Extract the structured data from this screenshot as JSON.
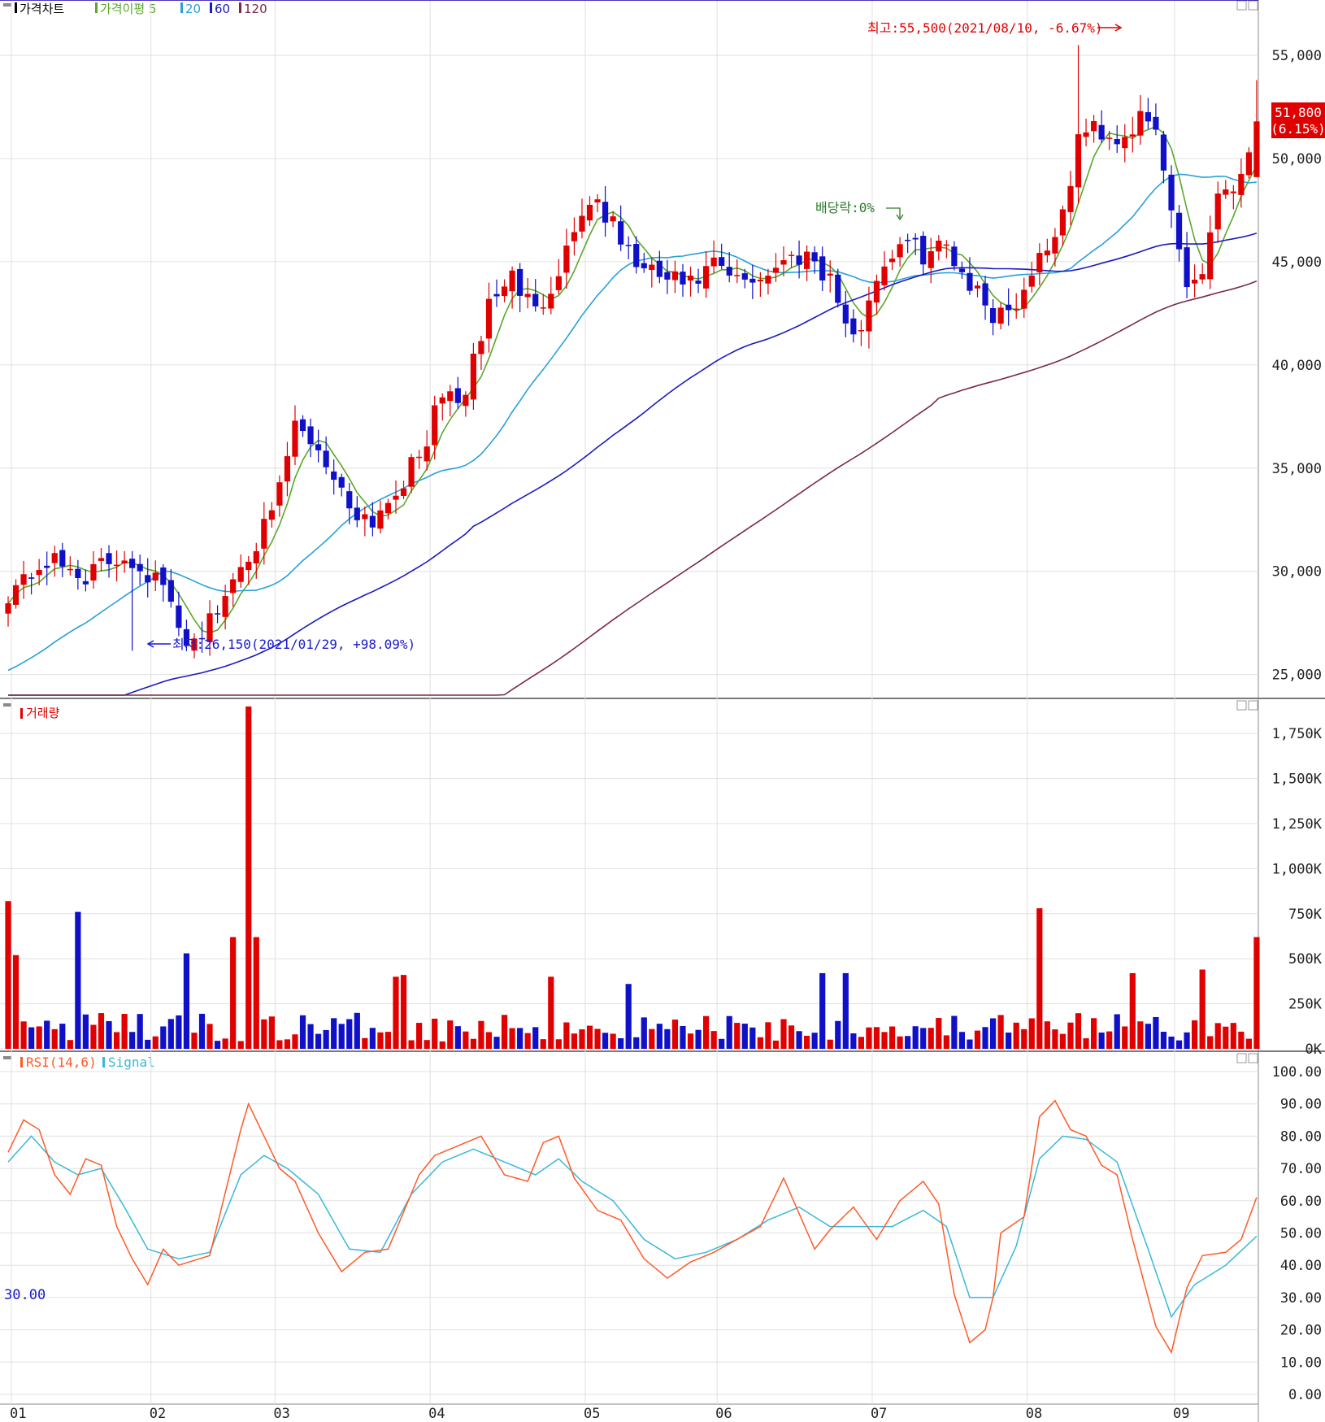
{
  "colors": {
    "up": "#e00000",
    "down": "#1010c8",
    "ma5": "#5aa82a",
    "ma20": "#2aa0d8",
    "ma60": "#1a1ac0",
    "ma120": "#7a2a48",
    "grid": "#e0e0e0",
    "rsi": "#ff5a28",
    "signal": "#3ab8d8",
    "overbought_fill": "#c80000",
    "oversold_fill": "#001a90",
    "line70": "#d02020",
    "line30": "#1a1ad0",
    "last_price_box": "#e00000"
  },
  "panels": {
    "price": {
      "legend": [
        {
          "text": "가격차트",
          "color": "#000000"
        },
        {
          "text": "가격이평 5",
          "color": "#5aa82a"
        },
        {
          "text": "20",
          "color": "#2aa0d8"
        },
        {
          "text": "60",
          "color": "#1a1ac0"
        },
        {
          "text": "120",
          "color": "#7a2a48"
        }
      ],
      "y_ticks": [
        "55,000",
        "50,000",
        "45,000",
        "40,000",
        "35,000",
        "30,000",
        "25,000"
      ],
      "last_price": "51,800",
      "last_change": "(6.15%)",
      "annot_high": "최고:55,500(2021/08/10, -6.67%)",
      "annot_low": "최저:26,150(2021/01/29, +98.09%)",
      "annot_div": "배당락:0%"
    },
    "volume": {
      "legend": "거래량",
      "y_ticks": [
        "1,750K",
        "1,500K",
        "1,250K",
        "1,000K",
        "750K",
        "500K",
        "250K",
        "0K"
      ]
    },
    "rsi": {
      "legend_rsi": "RSI(14,6)",
      "legend_signal": "Signal",
      "y_ticks": [
        "100.00",
        "90.00",
        "80.00",
        "70.00",
        "60.00",
        "50.00",
        "40.00",
        "30.00",
        "20.00",
        "10.00",
        "0.00"
      ],
      "level_label": "30.00",
      "overbought": 70,
      "oversold": 30
    }
  },
  "months": [
    "01",
    "02",
    "03",
    "04",
    "05",
    "06",
    "07",
    "08",
    "09"
  ],
  "chart_data": [
    {
      "type": "candlestick",
      "title": "가격차트",
      "ylim": [
        24000,
        56500
      ],
      "y_ticks": [
        25000,
        30000,
        35000,
        40000,
        45000,
        50000,
        55000
      ],
      "anchors": [
        [
          0,
          29000
        ],
        [
          5,
          30500
        ],
        [
          10,
          29800
        ],
        [
          15,
          30800
        ],
        [
          20,
          29300
        ],
        [
          22,
          27000
        ],
        [
          24,
          26700
        ],
        [
          27,
          28000
        ],
        [
          30,
          30500
        ],
        [
          34,
          32500
        ],
        [
          37,
          37000
        ],
        [
          40,
          36000
        ],
        [
          44,
          33200
        ],
        [
          47,
          32500
        ],
        [
          50,
          34000
        ],
        [
          53,
          35500
        ],
        [
          56,
          38500
        ],
        [
          59,
          38500
        ],
        [
          62,
          43000
        ],
        [
          65,
          44300
        ],
        [
          68,
          42500
        ],
        [
          71,
          44700
        ],
        [
          74,
          47500
        ],
        [
          76,
          48000
        ],
        [
          79,
          46000
        ],
        [
          82,
          44500
        ],
        [
          85,
          44200
        ],
        [
          88,
          43800
        ],
        [
          91,
          44800
        ],
        [
          94,
          44000
        ],
        [
          97,
          44300
        ],
        [
          100,
          45000
        ],
        [
          103,
          45500
        ],
        [
          106,
          44200
        ],
        [
          109,
          41000
        ],
        [
          112,
          44300
        ],
        [
          115,
          46000
        ],
        [
          118,
          45400
        ],
        [
          121,
          45800
        ],
        [
          124,
          44000
        ],
        [
          127,
          42500
        ],
        [
          130,
          43000
        ],
        [
          133,
          45300
        ],
        [
          136,
          47000
        ],
        [
          138,
          51000
        ],
        [
          140,
          51500
        ],
        [
          143,
          51000
        ],
        [
          146,
          51800
        ],
        [
          148,
          51300
        ],
        [
          150,
          47500
        ],
        [
          152,
          44000
        ],
        [
          154,
          44500
        ],
        [
          156,
          48500
        ],
        [
          159,
          49000
        ],
        [
          161,
          51800
        ]
      ],
      "high_label_value": 55500,
      "low_label_value": 26150,
      "ma_periods": [
        5,
        20,
        60,
        120
      ]
    },
    {
      "type": "bar",
      "title": "거래량",
      "ylim": [
        0,
        1850
      ],
      "unit": "K",
      "y_ticks": [
        0,
        250,
        500,
        750,
        1000,
        1250,
        1500,
        1750
      ],
      "spikes": [
        [
          0,
          820
        ],
        [
          1,
          520
        ],
        [
          9,
          760
        ],
        [
          23,
          530
        ],
        [
          29,
          620
        ],
        [
          31,
          1900
        ],
        [
          32,
          620
        ],
        [
          50,
          400
        ],
        [
          51,
          410
        ],
        [
          70,
          400
        ],
        [
          80,
          360
        ],
        [
          105,
          420
        ],
        [
          108,
          420
        ],
        [
          133,
          780
        ],
        [
          145,
          420
        ],
        [
          154,
          440
        ],
        [
          161,
          620
        ]
      ]
    },
    {
      "type": "line",
      "title": "RSI(14,6)",
      "series": [
        {
          "name": "RSI(14,6)"
        },
        {
          "name": "Signal"
        }
      ],
      "ylim": [
        0,
        100
      ],
      "y_ticks": [
        0,
        10,
        20,
        30,
        40,
        50,
        60,
        70,
        80,
        90,
        100
      ],
      "reference_lines": [
        70,
        30
      ],
      "rsi_anchors": [
        [
          0,
          75
        ],
        [
          2,
          85
        ],
        [
          4,
          82
        ],
        [
          6,
          68
        ],
        [
          8,
          62
        ],
        [
          10,
          73
        ],
        [
          12,
          71
        ],
        [
          14,
          52
        ],
        [
          16,
          42
        ],
        [
          18,
          34
        ],
        [
          20,
          45
        ],
        [
          22,
          40
        ],
        [
          26,
          43
        ],
        [
          30,
          82
        ],
        [
          31,
          90
        ],
        [
          33,
          80
        ],
        [
          35,
          70
        ],
        [
          37,
          66
        ],
        [
          40,
          50
        ],
        [
          43,
          38
        ],
        [
          46,
          44
        ],
        [
          49,
          45
        ],
        [
          53,
          68
        ],
        [
          55,
          74
        ],
        [
          58,
          77
        ],
        [
          61,
          80
        ],
        [
          64,
          68
        ],
        [
          67,
          66
        ],
        [
          69,
          78
        ],
        [
          71,
          80
        ],
        [
          73,
          67
        ],
        [
          76,
          57
        ],
        [
          79,
          54
        ],
        [
          82,
          42
        ],
        [
          85,
          36
        ],
        [
          88,
          41
        ],
        [
          91,
          44
        ],
        [
          94,
          48
        ],
        [
          97,
          52
        ],
        [
          100,
          67
        ],
        [
          102,
          56
        ],
        [
          104,
          45
        ],
        [
          106,
          51
        ],
        [
          109,
          58
        ],
        [
          112,
          48
        ],
        [
          115,
          60
        ],
        [
          118,
          66
        ],
        [
          120,
          59
        ],
        [
          122,
          31
        ],
        [
          124,
          16
        ],
        [
          126,
          20
        ],
        [
          127,
          30
        ],
        [
          128,
          50
        ],
        [
          131,
          55
        ],
        [
          133,
          86
        ],
        [
          135,
          91
        ],
        [
          137,
          82
        ],
        [
          139,
          80
        ],
        [
          141,
          71
        ],
        [
          143,
          68
        ],
        [
          145,
          48
        ],
        [
          148,
          21
        ],
        [
          150,
          13
        ],
        [
          152,
          33
        ],
        [
          154,
          43
        ],
        [
          157,
          44
        ],
        [
          159,
          48
        ],
        [
          161,
          61
        ]
      ],
      "signal_anchors": [
        [
          0,
          72
        ],
        [
          3,
          80
        ],
        [
          6,
          72
        ],
        [
          9,
          68
        ],
        [
          12,
          70
        ],
        [
          15,
          58
        ],
        [
          18,
          45
        ],
        [
          22,
          42
        ],
        [
          26,
          44
        ],
        [
          30,
          68
        ],
        [
          33,
          74
        ],
        [
          36,
          70
        ],
        [
          40,
          62
        ],
        [
          44,
          45
        ],
        [
          48,
          44
        ],
        [
          52,
          62
        ],
        [
          56,
          72
        ],
        [
          60,
          76
        ],
        [
          64,
          72
        ],
        [
          68,
          68
        ],
        [
          71,
          73
        ],
        [
          74,
          66
        ],
        [
          78,
          60
        ],
        [
          82,
          48
        ],
        [
          86,
          42
        ],
        [
          90,
          44
        ],
        [
          94,
          48
        ],
        [
          98,
          54
        ],
        [
          102,
          58
        ],
        [
          106,
          52
        ],
        [
          110,
          52
        ],
        [
          114,
          52
        ],
        [
          118,
          57
        ],
        [
          121,
          52
        ],
        [
          124,
          30
        ],
        [
          127,
          30
        ],
        [
          130,
          46
        ],
        [
          133,
          73
        ],
        [
          136,
          80
        ],
        [
          139,
          79
        ],
        [
          143,
          72
        ],
        [
          147,
          45
        ],
        [
          150,
          24
        ],
        [
          153,
          34
        ],
        [
          157,
          40
        ],
        [
          161,
          49
        ]
      ]
    }
  ]
}
